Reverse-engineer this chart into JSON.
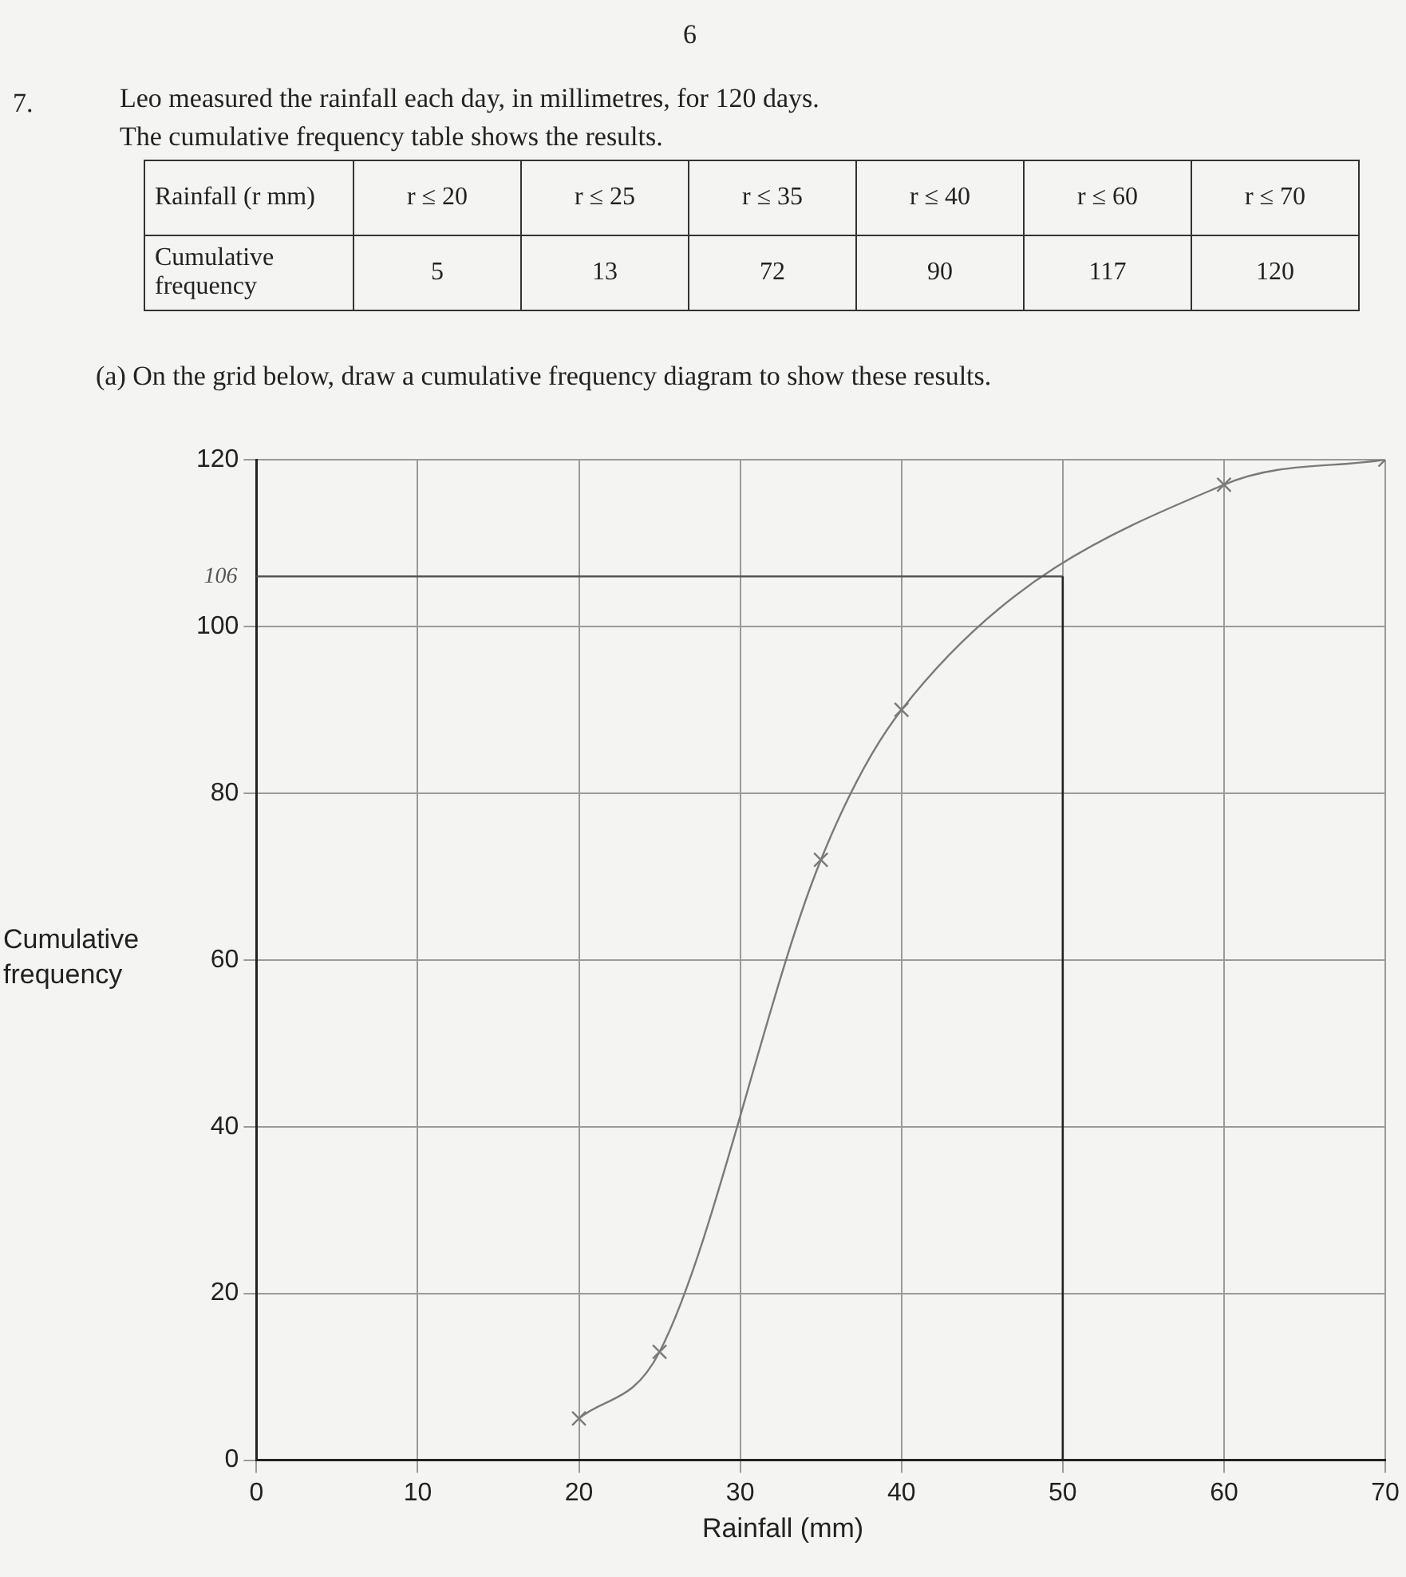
{
  "chart_data": [
    {
      "type": "other",
      "title": "Leo measured the rainfall each day, in millimetres, for 120 days.",
      "subtitle": "The cumulative frequency table shows the results.",
      "annotations": [
        "6",
        "7.",
        "Rainfall (r mm)",
        "r ≤ 20",
        "r ≤ 25",
        "r ≤ 35",
        "r ≤ 40",
        "r ≤ 60",
        "r ≤ 70",
        "Cumulative frequency",
        "5",
        "13",
        "72",
        "90",
        "117",
        "120"
      ]
    },
    {
      "type": "line",
      "title": "(a) On the grid below, draw a cumulative frequency diagram to show these results.",
      "xlabel": "Rainfall (mm)",
      "ylabel": "Cumulative frequency",
      "x": [
        20,
        25,
        35,
        40,
        60,
        70
      ],
      "series": [
        {
          "color": "#7a7a7a",
          "values": [
            5,
            13,
            72,
            90,
            117,
            120
          ]
        }
      ],
      "xlim": [
        0,
        70
      ],
      "xticks": [
        0,
        10,
        20,
        30,
        40,
        50,
        60,
        70
      ],
      "ylim": [
        0,
        120
      ],
      "yticks": [
        0,
        20,
        40,
        60,
        80,
        100,
        120
      ],
      "grid": true,
      "legend": false,
      "marker": "cross",
      "line_style": "solid",
      "ref_lines": [
        {
          "axis": "y",
          "value": 106,
          "label": "106",
          "color": "#555555"
        },
        {
          "axis": "x",
          "value": 50,
          "color": "#222222"
        }
      ]
    }
  ]
}
